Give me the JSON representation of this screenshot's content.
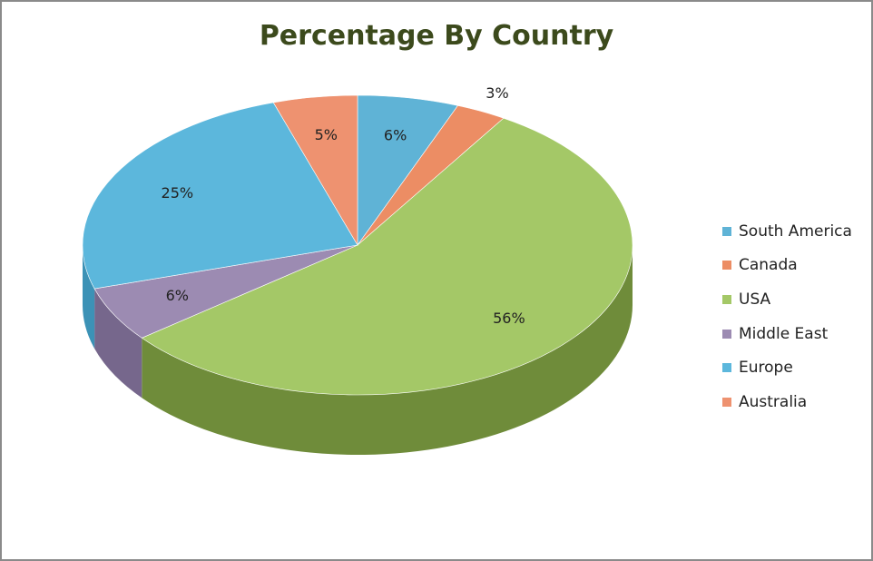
{
  "chart_data": {
    "type": "pie",
    "title": "Percentage By Country",
    "categories": [
      "South America",
      "Canada",
      "USA",
      "Middle East",
      "Europe",
      "Australia"
    ],
    "values": [
      6,
      3,
      56,
      6,
      25,
      5
    ],
    "labels": [
      "6%",
      "3%",
      "56%",
      "6%",
      "25%",
      "5%"
    ],
    "colors": [
      "#5fb3d6",
      "#ec8d64",
      "#a4c867",
      "#9c8bb2",
      "#5cb7dc",
      "#ee9270"
    ],
    "side_colors": [
      "#3e8db0",
      "#c46d47",
      "#6f8c3a",
      "#76678c",
      "#3c92b6",
      "#c9704f"
    ],
    "legend_position": "right",
    "is_3d": true
  }
}
